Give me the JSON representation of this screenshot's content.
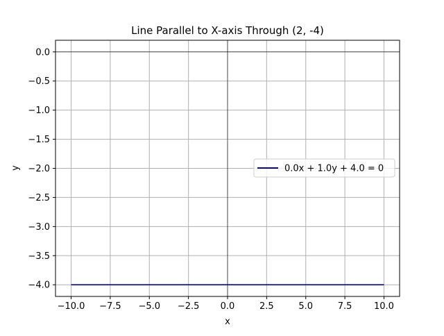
{
  "chart_data": {
    "type": "line",
    "title": "Line Parallel to X-axis Through (2, -4)",
    "xlabel": "x",
    "ylabel": "y",
    "xlim": [
      -11,
      11
    ],
    "ylim": [
      -4.2,
      0.2
    ],
    "xticks": [
      -10.0,
      -7.5,
      -5.0,
      -2.5,
      0.0,
      2.5,
      5.0,
      7.5,
      10.0
    ],
    "xtick_labels": [
      "−10.0",
      "−7.5",
      "−5.0",
      "−2.5",
      "0.0",
      "2.5",
      "5.0",
      "7.5",
      "10.0"
    ],
    "yticks": [
      0.0,
      -0.5,
      -1.0,
      -1.5,
      -2.0,
      -2.5,
      -3.0,
      -3.5,
      -4.0
    ],
    "ytick_labels": [
      "0.0",
      "−0.5",
      "−1.0",
      "−1.5",
      "−2.0",
      "−2.5",
      "−3.0",
      "−3.5",
      "−4.0"
    ],
    "grid": true,
    "axhline": 0,
    "axvline": 0,
    "legend_position": "center-right",
    "series": [
      {
        "name": "0.0x + 1.0y + 4.0 = 0",
        "color": "#0000cc",
        "x": [
          -10,
          10
        ],
        "y": [
          -4,
          -4
        ]
      }
    ]
  }
}
